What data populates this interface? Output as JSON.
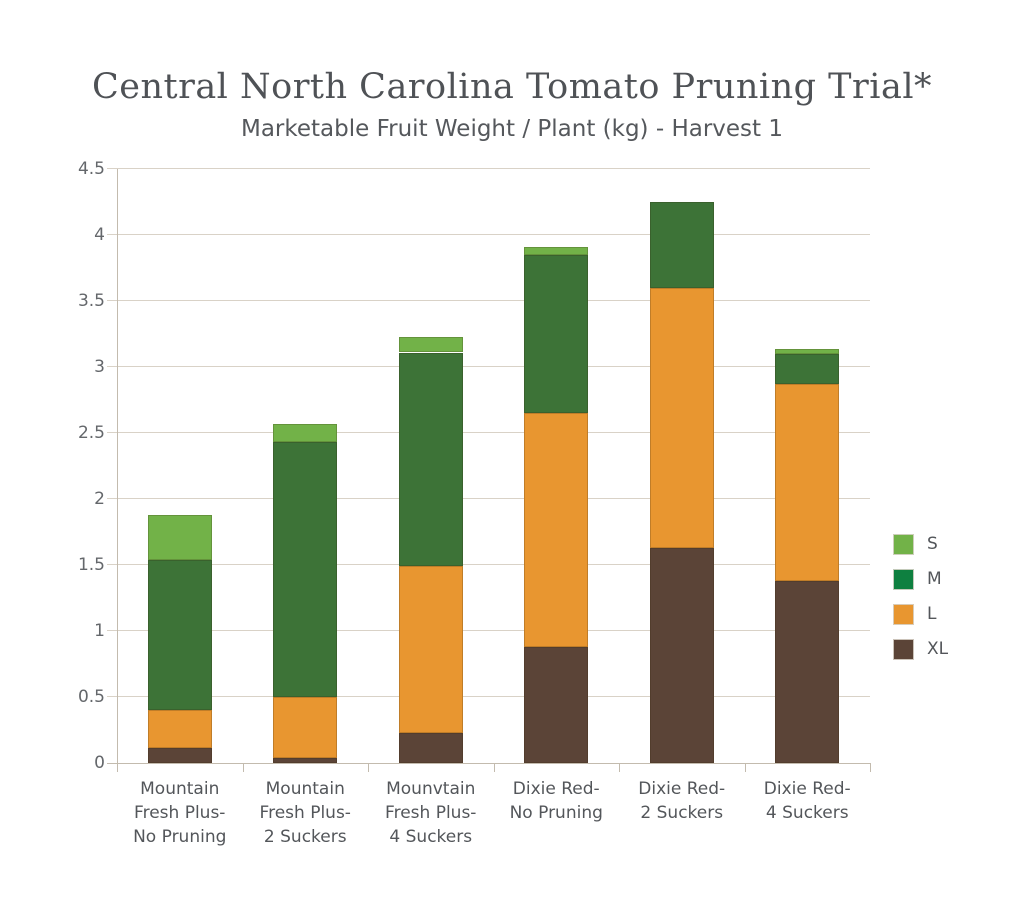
{
  "header": {
    "title": "Central North Carolina Tomato Pruning Trial*",
    "subtitle": "Marketable Fruit Weight / Plant (kg) - Harvest 1"
  },
  "colors": {
    "background": "#ffffff",
    "title_text": "#4f5256",
    "subtitle_text": "#55585c",
    "y_label_text": "#64676b",
    "x_label_text": "#53565a",
    "gridline": "#d9d2c7",
    "axis_line": "#c3bbae",
    "series_S": "#72b248",
    "series_M_bar": "#3d7337",
    "series_M_legend": "#0e8040",
    "series_L": "#e89630",
    "series_XL": "#5b4437"
  },
  "chart_data": {
    "type": "bar",
    "stacked": true,
    "title": "Central North Carolina Tomato Pruning Trial*",
    "subtitle": "Marketable Fruit Weight / Plant (kg) - Harvest 1",
    "categories": [
      "Mountain Fresh Plus- No Pruning",
      "Mountain Fresh Plus- 2 Suckers",
      "Mounvtain Fresh Plus- 4 Suckers",
      "Dixie Red- No Pruning",
      "Dixie Red- 2 Suckers",
      "Dixie Red- 4 Suckers"
    ],
    "category_lines": [
      [
        "Mountain",
        "Fresh Plus-",
        "No Pruning"
      ],
      [
        "Mountain",
        "Fresh Plus-",
        "2 Suckers"
      ],
      [
        "Mounvtain",
        "Fresh Plus-",
        "4 Suckers"
      ],
      [
        "Dixie Red-",
        "No Pruning"
      ],
      [
        "Dixie Red-",
        "2 Suckers"
      ],
      [
        "Dixie Red-",
        "4 Suckers"
      ]
    ],
    "series": [
      {
        "name": "XL",
        "color": "#5b4437",
        "values": [
          0.11,
          0.04,
          0.23,
          0.88,
          1.63,
          1.38
        ]
      },
      {
        "name": "L",
        "color": "#e89630",
        "values": [
          0.29,
          0.46,
          1.26,
          1.77,
          1.97,
          1.49
        ]
      },
      {
        "name": "M",
        "color": "#3d7337",
        "values": [
          1.14,
          1.93,
          1.62,
          1.2,
          0.65,
          0.23
        ]
      },
      {
        "name": "S",
        "color": "#72b248",
        "values": [
          0.34,
          0.14,
          0.12,
          0.06,
          0.0,
          0.04
        ]
      }
    ],
    "totals": [
      1.88,
      2.57,
      3.23,
      3.91,
      4.25,
      3.14
    ],
    "ylim": [
      0,
      4.5
    ],
    "ytick_step": 0.5,
    "yticks": [
      "0",
      "0.5",
      "1",
      "1.5",
      "2",
      "2.5",
      "3",
      "3.5",
      "4",
      "4.5"
    ],
    "grid": true,
    "legend": {
      "position": "right",
      "items": [
        {
          "label": "S",
          "color": "#72b248"
        },
        {
          "label": "M",
          "color": "#0e8040"
        },
        {
          "label": "L",
          "color": "#e89630"
        },
        {
          "label": "XL",
          "color": "#5b4437"
        }
      ]
    }
  }
}
